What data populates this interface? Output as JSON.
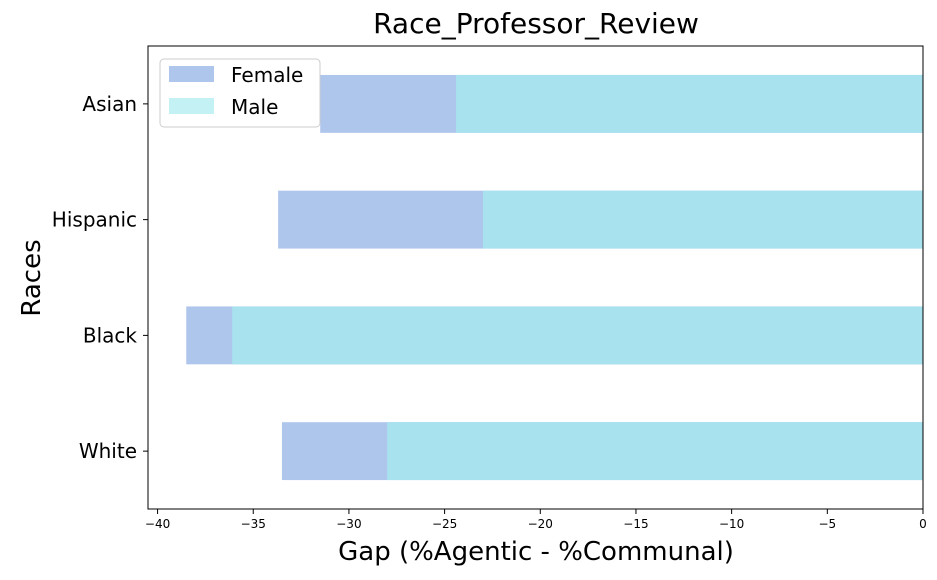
{
  "chart_data": {
    "type": "bar",
    "orientation": "horizontal",
    "stacking": "overlay",
    "title": "Race_Professor_Review",
    "xlabel": "Gap (%Agentic - %Communal)",
    "ylabel": "Races",
    "categories": [
      "White",
      "Black",
      "Hispanic",
      "Asian"
    ],
    "series": [
      {
        "name": "Female",
        "color": "#aec5ec",
        "values": [
          -33.5,
          -38.5,
          -33.7,
          -31.5
        ]
      },
      {
        "name": "Male",
        "color": "#a8e2ef",
        "values": [
          -28.0,
          -36.1,
          -23.0,
          -24.4
        ]
      }
    ],
    "xlim": [
      -40.5,
      0
    ],
    "xticks": [
      -40,
      -35,
      -30,
      -25,
      -20,
      -15,
      -10,
      -5,
      0
    ],
    "xtick_labels": [
      "−40",
      "−35",
      "−30",
      "−25",
      "−20",
      "−15",
      "−10",
      "−5",
      "0"
    ],
    "legend": {
      "position": "top-left",
      "entries": [
        {
          "label": "Female",
          "color": "#aec5ec"
        },
        {
          "label": "Male",
          "color": "#c4f1f4"
        }
      ]
    },
    "grid": false
  }
}
